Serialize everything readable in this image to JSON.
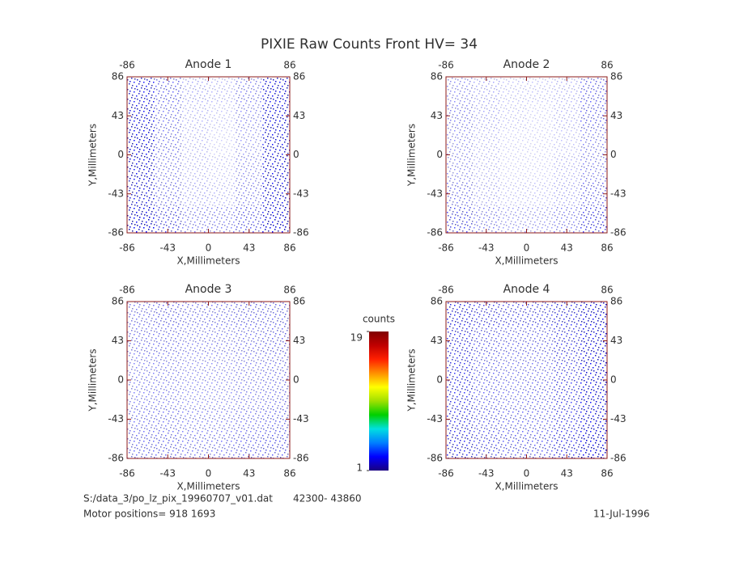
{
  "title": "PIXIE Raw Counts Front HV= 34",
  "chart_data": [
    {
      "type": "heatmap",
      "title": "Anode 1",
      "xlabel": "X,Millimeters",
      "ylabel": "Y,Millimeters",
      "xlim": [
        -86,
        86
      ],
      "ylim": [
        -86,
        86
      ],
      "xticks": [
        -86,
        -43,
        0,
        43,
        86
      ],
      "yticks": [
        -86,
        -43,
        0,
        43,
        86
      ],
      "x2ticks": [
        -86,
        86
      ],
      "z": [
        [
          0.9,
          0.6,
          0.35,
          0.3,
          0.5,
          0.95
        ],
        [
          0.95,
          0.55,
          0.3,
          0.25,
          0.45,
          0.95
        ],
        [
          1.0,
          0.55,
          0.3,
          0.2,
          0.4,
          0.95
        ],
        [
          0.95,
          0.5,
          0.3,
          0.25,
          0.45,
          0.95
        ],
        [
          0.9,
          0.55,
          0.35,
          0.3,
          0.5,
          0.95
        ],
        [
          1.0,
          0.7,
          0.5,
          0.5,
          0.65,
          1.0
        ]
      ]
    },
    {
      "type": "heatmap",
      "title": "Anode 2",
      "xlabel": "X,Millimeters",
      "ylabel": "Y,Millimeters",
      "xlim": [
        -86,
        86
      ],
      "ylim": [
        -86,
        86
      ],
      "xticks": [
        -86,
        -43,
        0,
        43,
        86
      ],
      "yticks": [
        -86,
        -43,
        0,
        43,
        86
      ],
      "x2ticks": [
        -86,
        86
      ],
      "z": [
        [
          0.45,
          0.35,
          0.25,
          0.25,
          0.3,
          0.6
        ],
        [
          0.5,
          0.35,
          0.25,
          0.2,
          0.3,
          0.6
        ],
        [
          0.45,
          0.3,
          0.2,
          0.2,
          0.25,
          0.5
        ],
        [
          0.45,
          0.3,
          0.2,
          0.2,
          0.3,
          0.5
        ],
        [
          0.55,
          0.35,
          0.25,
          0.25,
          0.35,
          0.6
        ],
        [
          0.7,
          0.5,
          0.4,
          0.4,
          0.5,
          0.75
        ]
      ]
    },
    {
      "type": "heatmap",
      "title": "Anode 3",
      "xlabel": "X,Millimeters",
      "ylabel": "Y,Millimeters",
      "xlim": [
        -86,
        86
      ],
      "ylim": [
        -86,
        86
      ],
      "xticks": [
        -86,
        -43,
        0,
        43,
        86
      ],
      "yticks": [
        -86,
        -43,
        0,
        43,
        86
      ],
      "x2ticks": [
        -86,
        86
      ],
      "z": [
        [
          0.55,
          0.6,
          0.55,
          0.55,
          0.6,
          0.6
        ],
        [
          0.55,
          0.55,
          0.5,
          0.5,
          0.55,
          0.6
        ],
        [
          0.5,
          0.5,
          0.45,
          0.45,
          0.5,
          0.55
        ],
        [
          0.5,
          0.5,
          0.45,
          0.45,
          0.5,
          0.55
        ],
        [
          0.55,
          0.55,
          0.5,
          0.5,
          0.55,
          0.6
        ],
        [
          0.6,
          0.6,
          0.55,
          0.55,
          0.6,
          0.65
        ]
      ]
    },
    {
      "type": "heatmap",
      "title": "Anode 4",
      "xlabel": "X,Millimeters",
      "ylabel": "Y,Millimeters",
      "xlim": [
        -86,
        86
      ],
      "ylim": [
        -86,
        86
      ],
      "xticks": [
        -86,
        -43,
        0,
        43,
        86
      ],
      "yticks": [
        -86,
        -43,
        0,
        43,
        86
      ],
      "x2ticks": [
        -86,
        86
      ],
      "z": [
        [
          0.85,
          0.75,
          0.7,
          0.7,
          0.8,
          0.95
        ],
        [
          0.8,
          0.65,
          0.6,
          0.6,
          0.75,
          0.95
        ],
        [
          0.8,
          0.6,
          0.55,
          0.55,
          0.7,
          0.95
        ],
        [
          0.8,
          0.6,
          0.55,
          0.6,
          0.75,
          0.95
        ],
        [
          0.8,
          0.65,
          0.6,
          0.6,
          0.75,
          0.95
        ],
        [
          0.85,
          0.7,
          0.65,
          0.65,
          0.8,
          1.0
        ]
      ]
    }
  ],
  "colorbar": {
    "label": "counts",
    "lim": [
      1,
      19
    ],
    "ticks": [
      1,
      19
    ],
    "colors": [
      "#1a0080",
      "#0000ff",
      "#0080ff",
      "#00e0e0",
      "#00d000",
      "#a0e000",
      "#ffff00",
      "#ff9000",
      "#ff2000",
      "#c00000",
      "#800000"
    ]
  },
  "footer": {
    "file": "S:/data_3/po_lz_pix_19960707_v01.dat",
    "range": "42300- 43860",
    "motor": "Motor positions= 918 1693",
    "date": "11-Jul-1996"
  }
}
